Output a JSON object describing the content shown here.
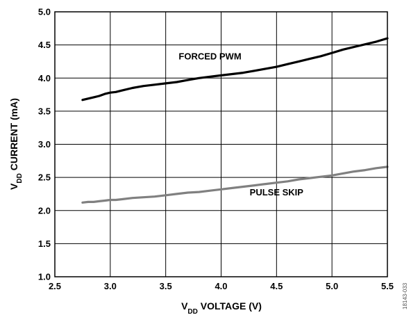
{
  "chart_data": {
    "type": "line",
    "xlabel_main": "V",
    "xlabel_sub": "DD",
    "xlabel_rest": " VOLTAGE (V)",
    "ylabel_main": "V",
    "ylabel_sub": "DD",
    "ylabel_rest": " CURRENT (mA)",
    "xlim": [
      2.5,
      5.5
    ],
    "ylim": [
      1.0,
      5.0
    ],
    "x_ticks": [
      "2.5",
      "3.0",
      "3.5",
      "4.0",
      "4.5",
      "5.0",
      "5.5"
    ],
    "y_ticks": [
      "1.0",
      "1.5",
      "2.0",
      "2.5",
      "3.0",
      "3.5",
      "4.0",
      "4.5",
      "5.0"
    ],
    "grid": true,
    "series": [
      {
        "name": "FORCED PWM",
        "color": "#000000",
        "x": [
          2.75,
          2.8,
          2.85,
          2.9,
          2.95,
          3.0,
          3.05,
          3.1,
          3.2,
          3.3,
          3.4,
          3.5,
          3.6,
          3.7,
          3.8,
          3.9,
          4.0,
          4.1,
          4.2,
          4.3,
          4.4,
          4.5,
          4.6,
          4.7,
          4.8,
          4.9,
          5.0,
          5.1,
          5.2,
          5.3,
          5.4,
          5.5
        ],
        "y": [
          3.67,
          3.69,
          3.71,
          3.73,
          3.76,
          3.78,
          3.79,
          3.81,
          3.85,
          3.88,
          3.9,
          3.92,
          3.94,
          3.97,
          4.0,
          4.02,
          4.04,
          4.06,
          4.08,
          4.11,
          4.14,
          4.17,
          4.21,
          4.25,
          4.29,
          4.33,
          4.38,
          4.43,
          4.47,
          4.51,
          4.55,
          4.6
        ]
      },
      {
        "name": "PULSE SKIP",
        "color": "#808080",
        "x": [
          2.75,
          2.8,
          2.85,
          2.9,
          2.95,
          3.0,
          3.05,
          3.1,
          3.2,
          3.3,
          3.4,
          3.5,
          3.6,
          3.7,
          3.8,
          3.9,
          4.0,
          4.1,
          4.2,
          4.3,
          4.4,
          4.5,
          4.6,
          4.7,
          4.8,
          4.9,
          5.0,
          5.1,
          5.2,
          5.3,
          5.4,
          5.5
        ],
        "y": [
          2.12,
          2.13,
          2.13,
          2.14,
          2.15,
          2.16,
          2.16,
          2.17,
          2.19,
          2.2,
          2.21,
          2.23,
          2.25,
          2.27,
          2.28,
          2.3,
          2.32,
          2.34,
          2.36,
          2.38,
          2.4,
          2.42,
          2.44,
          2.47,
          2.49,
          2.51,
          2.53,
          2.56,
          2.59,
          2.61,
          2.64,
          2.66
        ]
      }
    ],
    "series_labels": [
      {
        "text": "FORCED PWM",
        "x": 3.9,
        "y": 4.28
      },
      {
        "text": "PULSE SKIP",
        "x": 4.5,
        "y": 2.23
      }
    ],
    "figure_id": "18143-033"
  }
}
